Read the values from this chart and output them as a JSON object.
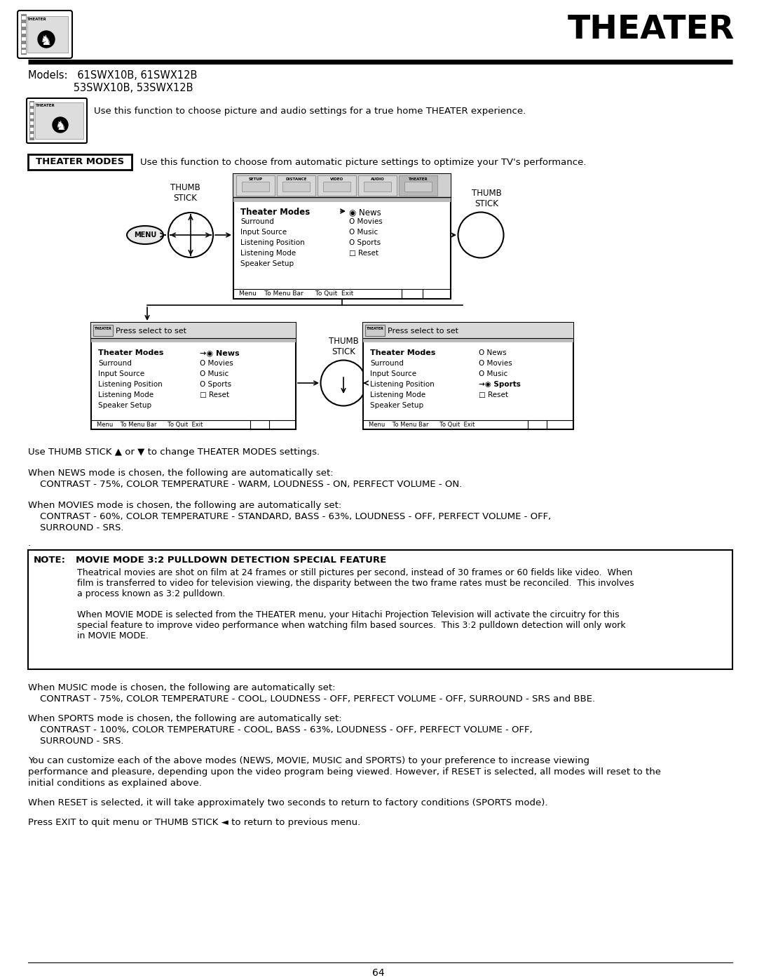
{
  "title": "THEATER",
  "background_color": "#ffffff",
  "models_line1": "Models:   61SWX10B, 61SWX12B",
  "models_line2": "              53SWX10B, 53SWX12B",
  "theater_intro": "Use this function to choose picture and audio settings for a true home THEATER experience.",
  "theater_modes_label": "THEATER MODES",
  "theater_modes_desc": "Use this function to choose from automatic picture settings to optimize your TV's performance.",
  "thumb_stick_label1": "THUMB\nSTICK",
  "thumb_stick_label2": "THUMB\nSTICK",
  "thumb_stick_label3": "THUMB\nSTICK",
  "menu_items_left": [
    "Theater Modes",
    "Surround",
    "Input Source",
    "Listening Position",
    "Listening Mode",
    "Speaker Setup"
  ],
  "menu_items_right": [
    "◉ News",
    "O Movies",
    "O Music",
    "O Sports",
    "□ Reset"
  ],
  "menu_bottom": "Menu    To Menu Bar      To Quit  Exit",
  "press_select": "Press select to set",
  "left_panel_items_left": [
    "Theater Modes",
    "Surround",
    "Input Source",
    "Listening Position",
    "Listening Mode",
    "Speaker Setup"
  ],
  "left_panel_items_right": [
    "→◉ News",
    "O Movies",
    "O Music",
    "O Sports",
    "□ Reset"
  ],
  "right_panel_items_left": [
    "Theater Modes",
    "Surround",
    "Input Source",
    "Listening Position",
    "Listening Mode",
    "Speaker Setup"
  ],
  "right_panel_items_right": [
    "O News",
    "O Movies",
    "O Music",
    "→◉ Sports",
    "□ Reset"
  ],
  "note_body_line1": "Theatrical movies are shot on film at 24 frames or still pictures per second, instead of 30 frames or 60 fields like video.  When",
  "note_body_line2": "film is transferred to video for television viewing, the disparity between the two frame rates must be reconciled.  This involves",
  "note_body_line3": "a process known as 3:2 pulldown.",
  "note_body_line4": "",
  "note_body_line5": "When MOVIE MODE is selected from the THEATER menu, your Hitachi Projection Television will activate the circuitry for this",
  "note_body_line6": "special feature to improve video performance when watching film based sources.  This 3:2 pulldown detection will only work",
  "note_body_line7": "in MOVIE MODE.",
  "tb0": "Use THUMB STICK ▲ or ▼ to change THEATER MODES settings.",
  "tb1i": "When NEWS mode is chosen, the following are automatically set:",
  "tb1b": "    CONTRAST - 75%, COLOR TEMPERATURE - WARM, LOUDNESS - ON, PERFECT VOLUME - ON.",
  "tb2i": "When MOVIES mode is chosen, the following are automatically set:",
  "tb2b1": "    CONTRAST - 60%, COLOR TEMPERATURE - STANDARD, BASS - 63%, LOUDNESS - OFF, PERFECT VOLUME - OFF,",
  "tb2b2": "    SURROUND - SRS.",
  "tb3": ".",
  "tb4i": "When MUSIC mode is chosen, the following are automatically set:",
  "tb4b": "    CONTRAST - 75%, COLOR TEMPERATURE - COOL, LOUDNESS - OFF, PERFECT VOLUME - OFF, SURROUND - SRS and BBE.",
  "tb5i": "When SPORTS mode is chosen, the following are automatically set:",
  "tb5b1": "    CONTRAST - 100%, COLOR TEMPERATURE - COOL, BASS - 63%, LOUDNESS - OFF, PERFECT VOLUME - OFF,",
  "tb5b2": "    SURROUND - SRS.",
  "tb6l1": "You can customize each of the above modes (NEWS, MOVIE, MUSIC and SPORTS) to your preference to increase viewing",
  "tb6l2": "performance and pleasure, depending upon the video program being viewed. However, if RESET is selected, all modes will reset to the",
  "tb6l3": "initial conditions as explained above.",
  "tb7": "When RESET is selected, it will take approximately two seconds to return to factory conditions (SPORTS mode).",
  "tb8": "Press EXIT to quit menu or THUMB STICK ◄ to return to previous menu.",
  "page_number": "64"
}
